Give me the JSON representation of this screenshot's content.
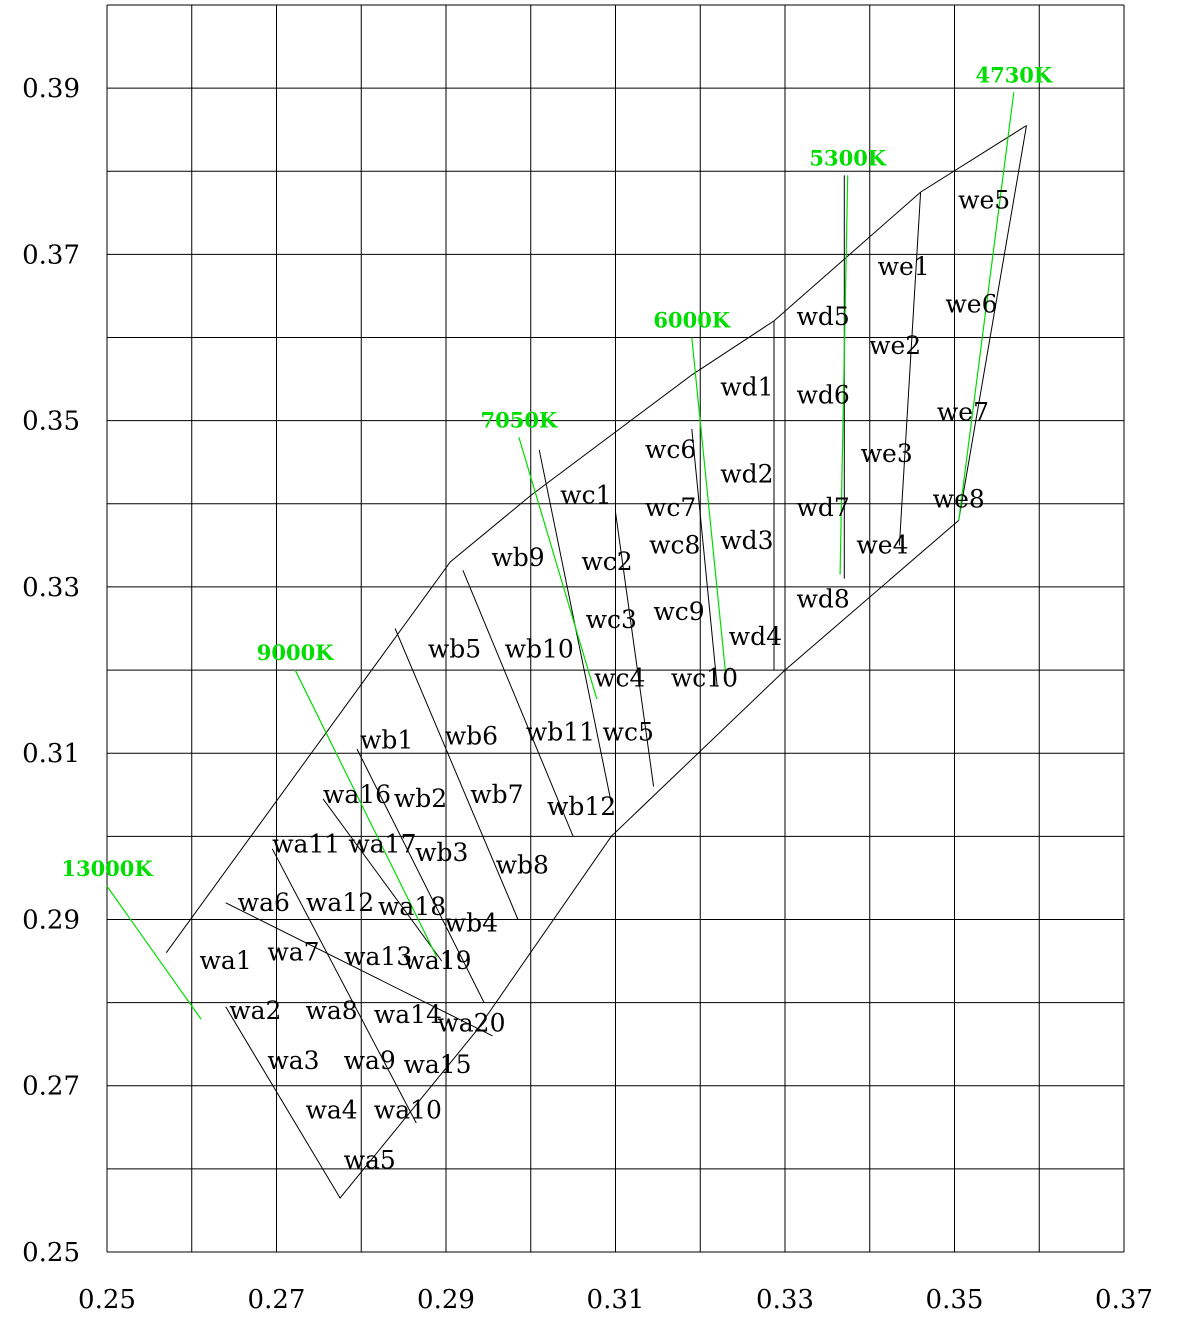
{
  "chart_data": {
    "type": "scatter",
    "title": "",
    "xlabel": "",
    "ylabel": "",
    "xlim": [
      0.25,
      0.37
    ],
    "ylim": [
      0.25,
      0.4
    ],
    "x_ticks": [
      "0.25",
      "0.27",
      "0.29",
      "0.31",
      "0.33",
      "0.35",
      "0.37"
    ],
    "y_ticks": [
      "0.25",
      "0.27",
      "0.29",
      "0.31",
      "0.33",
      "0.35",
      "0.37",
      "0.39"
    ],
    "grid": true,
    "grid_step_x": 0.01,
    "grid_step_y": 0.01,
    "colors": {
      "bins": "#000000",
      "cct_lines": "#00dd00",
      "grid": "#000000"
    },
    "cct_lines": [
      {
        "label": "13000K",
        "from": [
          0.25,
          0.294
        ],
        "to": [
          0.2611,
          0.278
        ]
      },
      {
        "label": "9000K",
        "from": [
          0.2722,
          0.32
        ],
        "to": [
          0.2889,
          0.2855
        ]
      },
      {
        "label": "7050K",
        "from": [
          0.2986,
          0.348
        ],
        "to": [
          0.3078,
          0.3165
        ]
      },
      {
        "label": "6000K",
        "from": [
          0.319,
          0.36
        ],
        "to": [
          0.323,
          0.3195
        ]
      },
      {
        "label": "5300K",
        "from": [
          0.3374,
          0.3795
        ],
        "to": [
          0.3365,
          0.3315
        ]
      },
      {
        "label": "4730K",
        "from": [
          0.357,
          0.3895
        ],
        "to": [
          0.3505,
          0.338
        ]
      }
    ],
    "series": [
      {
        "name": "wa1",
        "x": 0.264,
        "y": 0.285
      },
      {
        "name": "wa2",
        "x": 0.2675,
        "y": 0.279
      },
      {
        "name": "wa3",
        "x": 0.272,
        "y": 0.273
      },
      {
        "name": "wa4",
        "x": 0.2765,
        "y": 0.267
      },
      {
        "name": "wa5",
        "x": 0.281,
        "y": 0.261
      },
      {
        "name": "wa6",
        "x": 0.2685,
        "y": 0.292
      },
      {
        "name": "wa7",
        "x": 0.272,
        "y": 0.286
      },
      {
        "name": "wa8",
        "x": 0.2765,
        "y": 0.279
      },
      {
        "name": "wa9",
        "x": 0.281,
        "y": 0.273
      },
      {
        "name": "wa10",
        "x": 0.2855,
        "y": 0.267
      },
      {
        "name": "wa11",
        "x": 0.2735,
        "y": 0.299
      },
      {
        "name": "wa12",
        "x": 0.2775,
        "y": 0.292
      },
      {
        "name": "wa13",
        "x": 0.282,
        "y": 0.2855
      },
      {
        "name": "wa14",
        "x": 0.2855,
        "y": 0.2785
      },
      {
        "name": "wa15",
        "x": 0.289,
        "y": 0.2725
      },
      {
        "name": "wa16",
        "x": 0.2795,
        "y": 0.305
      },
      {
        "name": "wa17",
        "x": 0.2825,
        "y": 0.299
      },
      {
        "name": "wa18",
        "x": 0.286,
        "y": 0.2915
      },
      {
        "name": "wa19",
        "x": 0.289,
        "y": 0.285
      },
      {
        "name": "wa20",
        "x": 0.293,
        "y": 0.2775
      },
      {
        "name": "wb1",
        "x": 0.283,
        "y": 0.3115
      },
      {
        "name": "wb2",
        "x": 0.287,
        "y": 0.3045
      },
      {
        "name": "wb3",
        "x": 0.2895,
        "y": 0.298
      },
      {
        "name": "wb4",
        "x": 0.293,
        "y": 0.2895
      },
      {
        "name": "wb5",
        "x": 0.291,
        "y": 0.3225
      },
      {
        "name": "wb6",
        "x": 0.293,
        "y": 0.312
      },
      {
        "name": "wb7",
        "x": 0.296,
        "y": 0.305
      },
      {
        "name": "wb8",
        "x": 0.299,
        "y": 0.2965
      },
      {
        "name": "wb9",
        "x": 0.2985,
        "y": 0.3335
      },
      {
        "name": "wb10",
        "x": 0.301,
        "y": 0.3225
      },
      {
        "name": "wb11",
        "x": 0.3035,
        "y": 0.3125
      },
      {
        "name": "wb12",
        "x": 0.306,
        "y": 0.3035
      },
      {
        "name": "wc1",
        "x": 0.3065,
        "y": 0.341
      },
      {
        "name": "wc2",
        "x": 0.309,
        "y": 0.333
      },
      {
        "name": "wc3",
        "x": 0.3095,
        "y": 0.326
      },
      {
        "name": "wc4",
        "x": 0.3105,
        "y": 0.319
      },
      {
        "name": "wc5",
        "x": 0.3115,
        "y": 0.3125
      },
      {
        "name": "wc6",
        "x": 0.3165,
        "y": 0.3465
      },
      {
        "name": "wc7",
        "x": 0.3165,
        "y": 0.3395
      },
      {
        "name": "wc8",
        "x": 0.317,
        "y": 0.335
      },
      {
        "name": "wc9",
        "x": 0.3175,
        "y": 0.327
      },
      {
        "name": "wc10",
        "x": 0.3205,
        "y": 0.319
      },
      {
        "name": "wd1",
        "x": 0.3255,
        "y": 0.354
      },
      {
        "name": "wd2",
        "x": 0.3255,
        "y": 0.3435
      },
      {
        "name": "wd3",
        "x": 0.3255,
        "y": 0.3355
      },
      {
        "name": "wd4",
        "x": 0.3265,
        "y": 0.324
      },
      {
        "name": "wd5",
        "x": 0.3345,
        "y": 0.3625
      },
      {
        "name": "wd6",
        "x": 0.3345,
        "y": 0.353
      },
      {
        "name": "wd7",
        "x": 0.3345,
        "y": 0.3395
      },
      {
        "name": "wd8",
        "x": 0.3345,
        "y": 0.3285
      },
      {
        "name": "we1",
        "x": 0.344,
        "y": 0.3685
      },
      {
        "name": "we2",
        "x": 0.343,
        "y": 0.359
      },
      {
        "name": "we3",
        "x": 0.342,
        "y": 0.346
      },
      {
        "name": "we4",
        "x": 0.3415,
        "y": 0.335
      },
      {
        "name": "we5",
        "x": 0.3535,
        "y": 0.3765
      },
      {
        "name": "we6",
        "x": 0.352,
        "y": 0.364
      },
      {
        "name": "we7",
        "x": 0.351,
        "y": 0.351
      },
      {
        "name": "we8",
        "x": 0.3505,
        "y": 0.3405
      }
    ],
    "bin_outlines": [
      [
        [
          0.257,
          0.286
        ],
        [
          0.2905,
          0.333
        ],
        [
          0.3,
          0.341
        ],
        [
          0.319,
          0.3555
        ],
        [
          0.3287,
          0.362
        ],
        [
          0.346,
          0.3775
        ],
        [
          0.3585,
          0.3855
        ]
      ],
      [
        [
          0.264,
          0.2795
        ],
        [
          0.2775,
          0.2565
        ],
        [
          0.2935,
          0.2765
        ],
        [
          0.3095,
          0.3
        ],
        [
          0.33,
          0.32
        ],
        [
          0.3505,
          0.338
        ]
      ],
      [
        [
          0.3585,
          0.3855
        ],
        [
          0.3505,
          0.338
        ]
      ],
      [
        [
          0.264,
          0.292
        ],
        [
          0.2955,
          0.276
        ]
      ],
      [
        [
          0.2695,
          0.2985
        ],
        [
          0.2865,
          0.2655
        ]
      ],
      [
        [
          0.2755,
          0.3045
        ],
        [
          0.2895,
          0.285
        ]
      ],
      [
        [
          0.2795,
          0.3105
        ],
        [
          0.2945,
          0.28
        ]
      ],
      [
        [
          0.284,
          0.325
        ],
        [
          0.2985,
          0.29
        ]
      ],
      [
        [
          0.292,
          0.332
        ],
        [
          0.305,
          0.3
        ]
      ],
      [
        [
          0.301,
          0.3465
        ],
        [
          0.3095,
          0.304
        ]
      ],
      [
        [
          0.31,
          0.339
        ],
        [
          0.3145,
          0.306
        ]
      ],
      [
        [
          0.319,
          0.349
        ],
        [
          0.322,
          0.318
        ]
      ],
      [
        [
          0.3287,
          0.362
        ],
        [
          0.3287,
          0.32
        ]
      ],
      [
        [
          0.337,
          0.3795
        ],
        [
          0.337,
          0.331
        ]
      ],
      [
        [
          0.346,
          0.3775
        ],
        [
          0.3435,
          0.335
        ]
      ]
    ]
  }
}
